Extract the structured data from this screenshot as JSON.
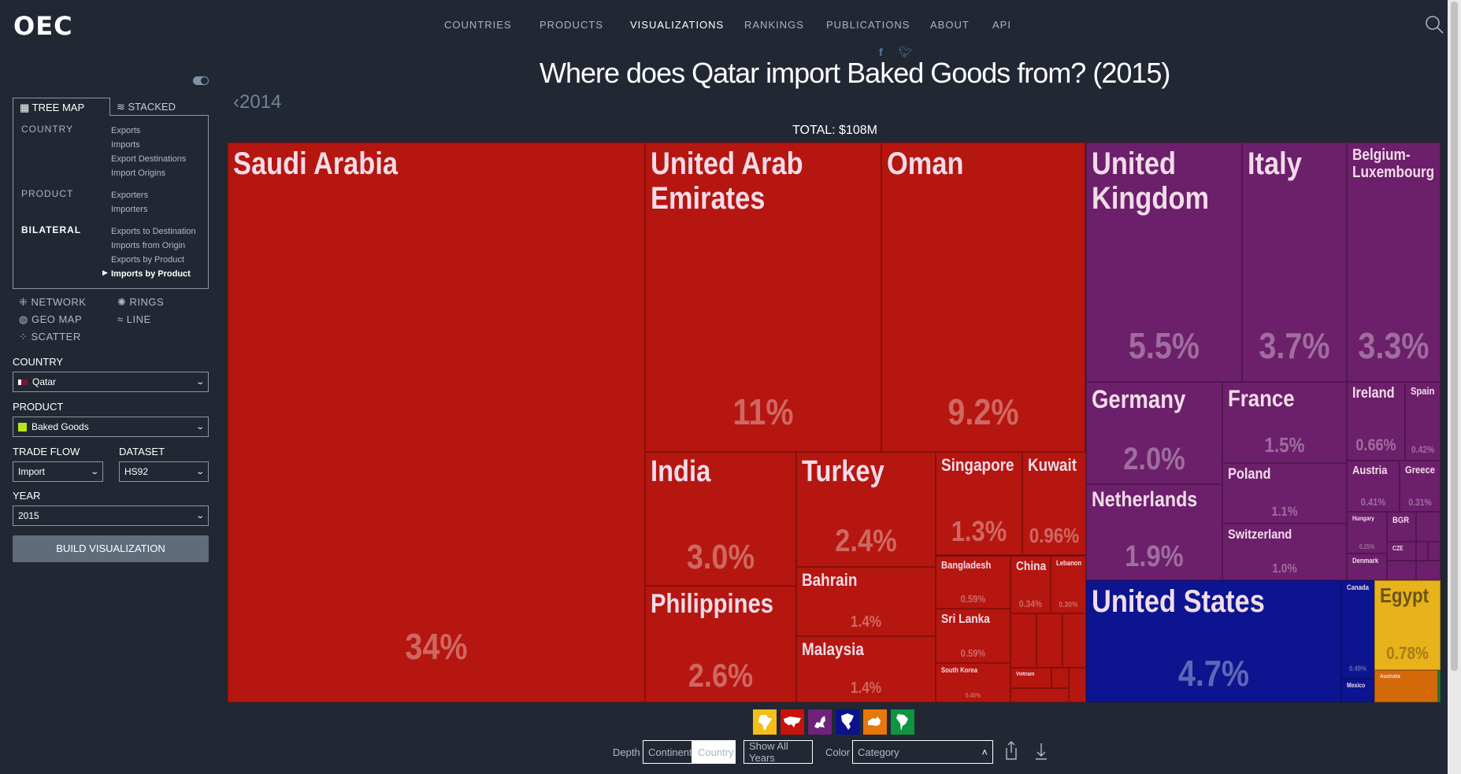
{
  "header": {
    "logo": "OEC",
    "nav": [
      "COUNTRIES",
      "PRODUCTS",
      "VISUALIZATIONS",
      "RANKINGS",
      "PUBLICATIONS",
      "ABOUT",
      "API"
    ],
    "social": [
      "f",
      "t"
    ]
  },
  "title": "Where does Qatar import Baked Goods from? (2015)",
  "prev_year": "‹2014",
  "total": "TOTAL: $108M",
  "sidebar": {
    "tabs": [
      "TREE MAP",
      "STACKED"
    ],
    "sections": [
      {
        "label": "COUNTRY",
        "links": [
          "Exports",
          "Imports",
          "Export Destinations",
          "Import Origins"
        ]
      },
      {
        "label": "PRODUCT",
        "links": [
          "Exporters",
          "Importers"
        ]
      },
      {
        "label": "BILATERAL",
        "links": [
          "Exports to Destination",
          "Imports from Origin",
          "Exports by Product",
          "Imports by Product"
        ]
      }
    ],
    "viz_types": [
      "NETWORK",
      "RINGS",
      "GEO MAP",
      "LINE",
      "SCATTER"
    ],
    "country_label": "COUNTRY",
    "country": "Qatar",
    "product_label": "PRODUCT",
    "product": "Baked Goods",
    "trade_flow_label": "TRADE FLOW",
    "trade_flow": "Import",
    "dataset_label": "DATASET",
    "dataset": "HS92",
    "year_label": "YEAR",
    "year": "2015",
    "build": "BUILD VISUALIZATION"
  },
  "colors": {
    "asia": "#b5160f",
    "europe": "#6c1f6b",
    "north_america": "#0c148f",
    "africa": "#e8b21b",
    "oceania": "#d4690a",
    "south_america": "#0f8f3f"
  },
  "treemap": {
    "cells": [
      {
        "name": "Saudi Arabia",
        "share": "34%"
      },
      {
        "name": "United Arab Emirates",
        "share": "11%"
      },
      {
        "name": "Oman",
        "share": "9.2%"
      },
      {
        "name": "India",
        "share": "3.0%"
      },
      {
        "name": "Philippines",
        "share": "2.6%"
      },
      {
        "name": "Turkey",
        "share": "2.4%"
      },
      {
        "name": "Bahrain",
        "share": "1.4%"
      },
      {
        "name": "Malaysia",
        "share": "1.4%"
      },
      {
        "name": "Singapore",
        "share": "1.3%"
      },
      {
        "name": "Kuwait",
        "share": "0.96%"
      },
      {
        "name": "Bangladesh",
        "share": "0.59%"
      },
      {
        "name": "China",
        "share": "0.34%"
      },
      {
        "name": "Lebanon",
        "share": "0.30%"
      },
      {
        "name": "Sri Lanka",
        "share": "0.59%"
      },
      {
        "name": "South Korea",
        "share": "0.45%"
      },
      {
        "name": "Vietnam",
        "share": ""
      },
      {
        "name": "United Kingdom",
        "share": "5.5%"
      },
      {
        "name": "Italy",
        "share": "3.7%"
      },
      {
        "name": "Belgium-Luxembourg",
        "share": "3.3%"
      },
      {
        "name": "Germany",
        "share": "2.0%"
      },
      {
        "name": "Netherlands",
        "share": "1.9%"
      },
      {
        "name": "France",
        "share": "1.5%"
      },
      {
        "name": "Poland",
        "share": "1.1%"
      },
      {
        "name": "Switzerland",
        "share": "1.0%"
      },
      {
        "name": "Ireland",
        "share": "0.66%"
      },
      {
        "name": "Spain",
        "share": "0.42%"
      },
      {
        "name": "Austria",
        "share": "0.41%"
      },
      {
        "name": "Greece",
        "share": "0.31%"
      },
      {
        "name": "Hungary",
        "share": "0.25%"
      },
      {
        "name": "Denmark",
        "share": ""
      },
      {
        "name": "BGR",
        "share": ""
      },
      {
        "name": "CZE",
        "share": ""
      },
      {
        "name": "United States",
        "share": "4.7%"
      },
      {
        "name": "Canada",
        "share": "0.49%"
      },
      {
        "name": "Mexico",
        "share": ""
      },
      {
        "name": "Egypt",
        "share": "0.78%"
      },
      {
        "name": "Australia",
        "share": ""
      }
    ]
  },
  "continents": [
    "africa",
    "asia",
    "europe",
    "north-america",
    "oceania",
    "south-america"
  ],
  "controls": {
    "depth_label": "Depth",
    "depth_options": [
      "Continent",
      "Country"
    ],
    "show_all_years": "Show All Years",
    "color_label": "Color",
    "color_value": "Category"
  }
}
